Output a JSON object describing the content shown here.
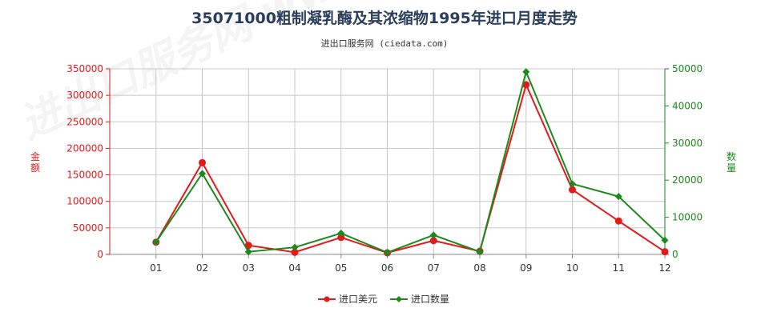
{
  "title": "35071000粗制凝乳酶及其浓缩物1995年进口月度走势",
  "subtitle": "进出口服务网 (ciedata.com)",
  "watermark": "进出口服务网 www.ciedata.com",
  "colors": {
    "amount": "#e31a1c",
    "quantity": "#1b8a1b",
    "grid": "#c8c8c8"
  },
  "chart_data": {
    "type": "line",
    "categories": [
      "01",
      "02",
      "03",
      "04",
      "05",
      "06",
      "07",
      "08",
      "09",
      "10",
      "11",
      "12"
    ],
    "y_left": {
      "label": "金额",
      "ylim": [
        0,
        350000
      ],
      "ticks": [
        0,
        50000,
        100000,
        150000,
        200000,
        250000,
        300000,
        350000
      ]
    },
    "y_right": {
      "label": "数量",
      "ylim": [
        0,
        50000
      ],
      "ticks": [
        0,
        10000,
        20000,
        30000,
        40000,
        50000
      ]
    },
    "series": [
      {
        "name": "进口美元",
        "axis": "left",
        "values": [
          23000,
          173000,
          17000,
          4000,
          32000,
          3000,
          26000,
          6000,
          320000,
          122000,
          63000,
          5000
        ]
      },
      {
        "name": "进口数量",
        "axis": "right",
        "values": [
          3300,
          21800,
          700,
          1900,
          5700,
          500,
          5200,
          700,
          49200,
          19000,
          15600,
          3800
        ]
      }
    ],
    "grid": true,
    "legend": "bottom-center"
  }
}
